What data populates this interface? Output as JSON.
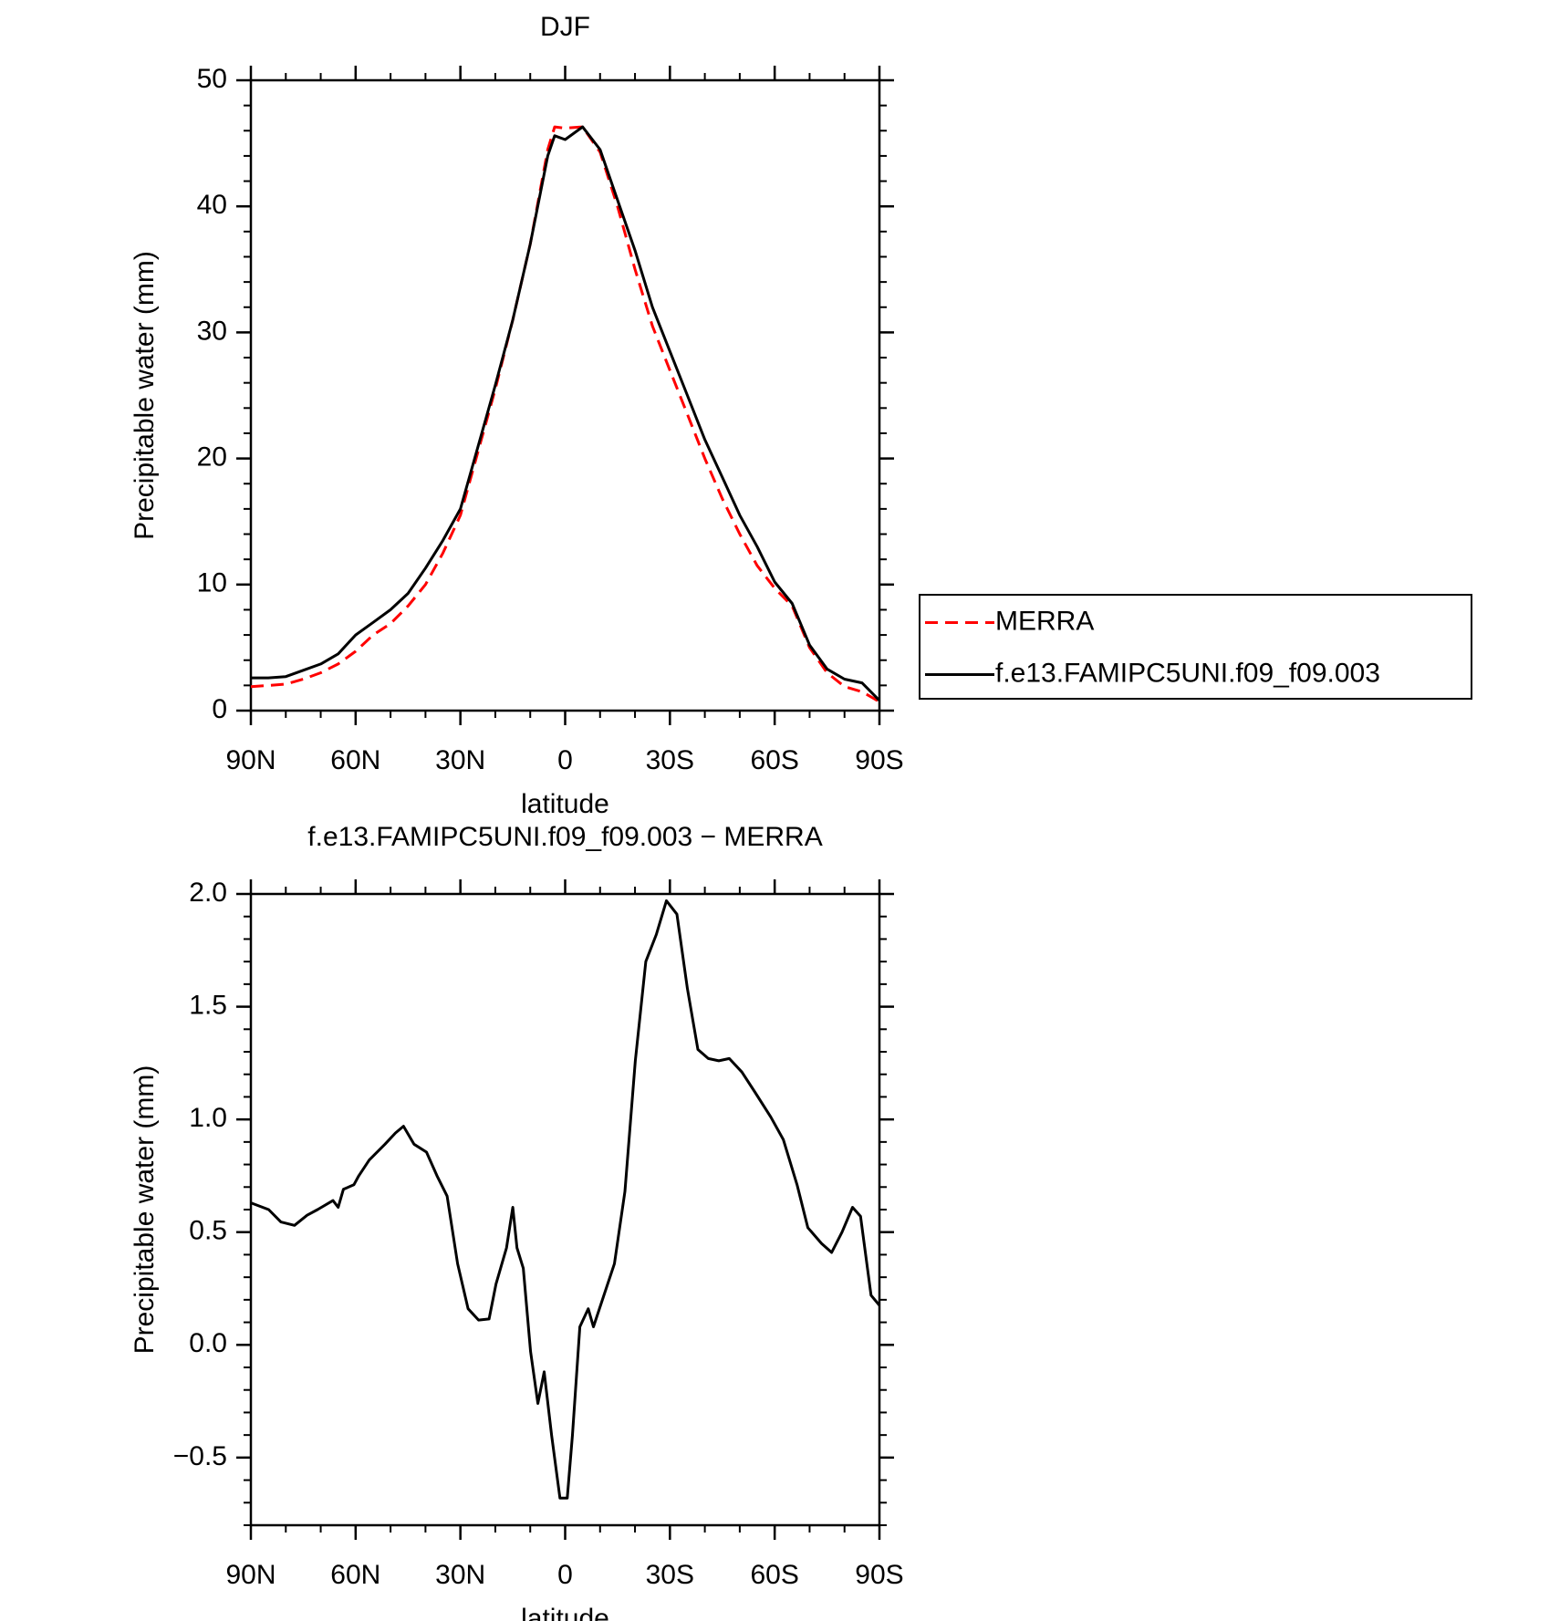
{
  "chart_data": [
    {
      "type": "line",
      "title": "DJF",
      "xlabel": "latitude",
      "ylabel": "Precipitable water (mm)",
      "x": [
        90,
        85,
        80,
        75,
        70,
        65,
        60,
        55,
        50,
        45,
        40,
        35,
        30,
        25,
        20,
        15,
        10,
        5,
        3,
        0,
        -5,
        -10,
        -15,
        -20,
        -25,
        -30,
        -35,
        -40,
        -45,
        -50,
        -55,
        -60,
        -65,
        -70,
        -75,
        -80,
        -85,
        -90
      ],
      "series": [
        {
          "name": "MERRA",
          "color": "#ff0000",
          "linestyle": "dashed",
          "values": [
            1.9,
            2.0,
            2.1,
            2.5,
            3.0,
            3.7,
            4.7,
            6.0,
            6.9,
            8.3,
            10.0,
            12.5,
            15.5,
            20.5,
            25.5,
            31.0,
            37.0,
            44.5,
            46.3,
            46.2,
            46.3,
            44.3,
            40.0,
            35.0,
            30.5,
            27.0,
            23.5,
            20.0,
            16.8,
            14.0,
            11.5,
            9.7,
            8.3,
            5.0,
            3.0,
            1.9,
            1.5,
            0.7
          ]
        },
        {
          "name": "f.e13.FAMIPC5UNI.f09_f09.003",
          "color": "#000000",
          "linestyle": "solid",
          "values": [
            2.6,
            2.6,
            2.7,
            3.2,
            3.7,
            4.5,
            6.0,
            7.0,
            8.0,
            9.3,
            11.3,
            13.5,
            16.0,
            20.9,
            25.8,
            31.0,
            37.0,
            44.0,
            45.6,
            45.3,
            46.3,
            44.5,
            40.5,
            36.5,
            32.0,
            28.5,
            25.0,
            21.5,
            18.5,
            15.5,
            13.0,
            10.2,
            8.5,
            5.2,
            3.3,
            2.5,
            2.2,
            0.8
          ]
        }
      ],
      "xlim": [
        90,
        -90
      ],
      "xticks": [
        {
          "value": 90,
          "label": "90N"
        },
        {
          "value": 60,
          "label": "60N"
        },
        {
          "value": 30,
          "label": "30N"
        },
        0,
        {
          "value": -30,
          "label": "30S"
        },
        {
          "value": -60,
          "label": "60S"
        },
        {
          "value": -90,
          "label": "90S"
        }
      ],
      "ylim": [
        0,
        50
      ],
      "yticks": [
        0,
        10,
        20,
        30,
        40,
        50
      ],
      "legend": "right"
    },
    {
      "type": "line",
      "title": "f.e13.FAMIPC5UNI.f09_f09.003 − MERRA",
      "xlabel": "latitude",
      "ylabel": "Precipitable water (mm)",
      "x": [
        90,
        84.9,
        81.4,
        77.5,
        73.9,
        70.9,
        66.5,
        65.0,
        63.5,
        60.5,
        59.1,
        56.1,
        51.6,
        48.6,
        46.3,
        43.3,
        39.7,
        36.7,
        33.8,
        30.8,
        27.8,
        24.8,
        21.8,
        19.8,
        16.8,
        15.0,
        13.8,
        12.0,
        9.9,
        7.8,
        6.0,
        3.9,
        1.5,
        -0.6,
        -2.1,
        -4.2,
        -6.6,
        -8.1,
        -11.1,
        -14.1,
        -17.1,
        -20.1,
        -23.1,
        -26.1,
        -29.0,
        -32.0,
        -35.0,
        -38.0,
        -41.0,
        -44.0,
        -47.0,
        -50.6,
        -54.4,
        -58.9,
        -62.5,
        -66.4,
        -69.5,
        -73.4,
        -76.3,
        -79.3,
        -82.3,
        -84.6,
        -87.6,
        -90.0
      ],
      "values": [
        0.63,
        0.6,
        0.545,
        0.53,
        0.575,
        0.6,
        0.64,
        0.61,
        0.69,
        0.71,
        0.75,
        0.82,
        0.89,
        0.94,
        0.97,
        0.89,
        0.855,
        0.75,
        0.66,
        0.36,
        0.16,
        0.11,
        0.115,
        0.27,
        0.43,
        0.61,
        0.43,
        0.34,
        -0.03,
        -0.26,
        -0.12,
        -0.4,
        -0.68,
        -0.68,
        -0.4,
        0.08,
        0.16,
        0.08,
        0.22,
        0.36,
        0.68,
        1.26,
        1.7,
        1.82,
        1.97,
        1.91,
        1.58,
        1.31,
        1.27,
        1.26,
        1.27,
        1.21,
        1.12,
        1.01,
        0.91,
        0.71,
        0.52,
        0.45,
        0.41,
        0.5,
        0.61,
        0.57,
        0.22,
        0.175
      ],
      "color": "#000000",
      "xlim": [
        90,
        -90
      ],
      "xticks": [
        {
          "value": 90,
          "label": "90N"
        },
        {
          "value": 60,
          "label": "60N"
        },
        {
          "value": 30,
          "label": "30N"
        },
        0,
        {
          "value": -30,
          "label": "30S"
        },
        {
          "value": -60,
          "label": "60S"
        },
        {
          "value": -90,
          "label": "90S"
        }
      ],
      "ylim": [
        -0.8,
        2.0
      ],
      "yticks": [
        {
          "value": -0.5,
          "label": "−0.5"
        },
        {
          "value": 0,
          "label": "0.0"
        },
        0.5,
        {
          "value": 1,
          "label": "1.0"
        },
        1.5,
        {
          "value": 2,
          "label": "2.0"
        }
      ]
    }
  ]
}
